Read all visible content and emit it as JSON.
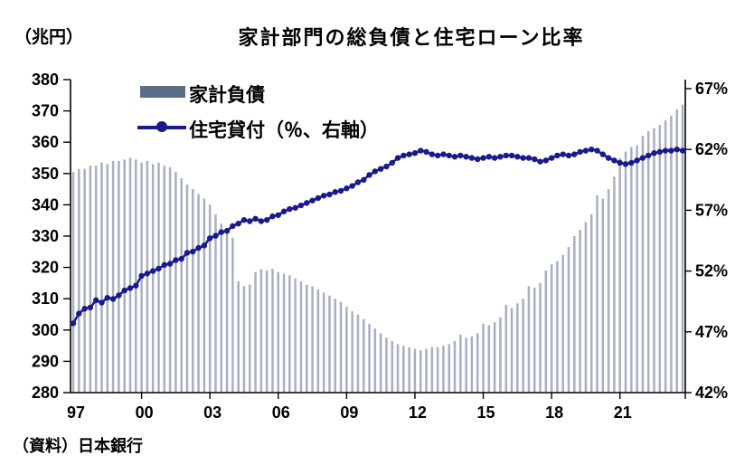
{
  "header": {
    "unit_label": "（兆円）",
    "title": "家計部門の総負債と住宅ローン比率"
  },
  "legend": {
    "bars_label": "家計負債",
    "line_label": "住宅貸付（％、右軸）"
  },
  "footer": {
    "source": "（資料）日本銀行"
  },
  "colors": {
    "bar": "#a7afc0",
    "bar_legend": "#5b6c85",
    "line": "#1a1a8c",
    "axis": "#000000",
    "text": "#000000",
    "background": "#ffffff"
  },
  "chart_data": {
    "type": "bar",
    "subtype": "combo bar + line, dual axis",
    "frequency": "quarterly",
    "title": "家計部門の総負債と住宅ローン比率",
    "grid": false,
    "legend_position": "inside top-left",
    "categories": [
      "1997Q1",
      "1997Q2",
      "1997Q3",
      "1997Q4",
      "1998Q1",
      "1998Q2",
      "1998Q3",
      "1998Q4",
      "1999Q1",
      "1999Q2",
      "1999Q3",
      "1999Q4",
      "2000Q1",
      "2000Q2",
      "2000Q3",
      "2000Q4",
      "2001Q1",
      "2001Q2",
      "2001Q3",
      "2001Q4",
      "2002Q1",
      "2002Q2",
      "2002Q3",
      "2002Q4",
      "2003Q1",
      "2003Q2",
      "2003Q3",
      "2003Q4",
      "2004Q1",
      "2004Q2",
      "2004Q3",
      "2004Q4",
      "2005Q1",
      "2005Q2",
      "2005Q3",
      "2005Q4",
      "2006Q1",
      "2006Q2",
      "2006Q3",
      "2006Q4",
      "2007Q1",
      "2007Q2",
      "2007Q3",
      "2007Q4",
      "2008Q1",
      "2008Q2",
      "2008Q3",
      "2008Q4",
      "2009Q1",
      "2009Q2",
      "2009Q3",
      "2009Q4",
      "2010Q1",
      "2010Q2",
      "2010Q3",
      "2010Q4",
      "2011Q1",
      "2011Q2",
      "2011Q3",
      "2011Q4",
      "2012Q1",
      "2012Q2",
      "2012Q3",
      "2012Q4",
      "2013Q1",
      "2013Q2",
      "2013Q3",
      "2013Q4",
      "2014Q1",
      "2014Q2",
      "2014Q3",
      "2014Q4",
      "2015Q1",
      "2015Q2",
      "2015Q3",
      "2015Q4",
      "2016Q1",
      "2016Q2",
      "2016Q3",
      "2016Q4",
      "2017Q1",
      "2017Q2",
      "2017Q3",
      "2017Q4",
      "2018Q1",
      "2018Q2",
      "2018Q3",
      "2018Q4",
      "2019Q1",
      "2019Q2",
      "2019Q3",
      "2019Q4",
      "2020Q1",
      "2020Q2",
      "2020Q3",
      "2020Q4",
      "2021Q1",
      "2021Q2",
      "2021Q3",
      "2021Q4",
      "2022Q1",
      "2022Q2",
      "2022Q3",
      "2022Q4",
      "2023Q1",
      "2023Q2",
      "2023Q3",
      "2023Q4"
    ],
    "series": [
      {
        "name": "家計負債",
        "type": "bar",
        "axis": "left",
        "unit": "兆円",
        "values": [
          350.5,
          351.5,
          351.5,
          352.5,
          352.5,
          353.5,
          353,
          354,
          354,
          354.5,
          355,
          354.5,
          353.5,
          354,
          353,
          353.5,
          352.5,
          352,
          350.5,
          348.5,
          346.5,
          345,
          343.5,
          342,
          340,
          337,
          334,
          331.5,
          329.5,
          315.5,
          314,
          314.5,
          318.5,
          319.5,
          319,
          319.5,
          318.5,
          318,
          317.5,
          316.5,
          315.5,
          314.5,
          314,
          313,
          312,
          311,
          310,
          309,
          307.5,
          306,
          305,
          303.5,
          302,
          300.5,
          299,
          297.5,
          296.5,
          295.5,
          295,
          294.5,
          294,
          293.5,
          294,
          294.5,
          294.5,
          295,
          295.5,
          296.5,
          298.5,
          297.5,
          298,
          299,
          302,
          301.5,
          302.5,
          304,
          308,
          307,
          308.5,
          310,
          314,
          313.5,
          315,
          319,
          321,
          322,
          324,
          326.5,
          330,
          332,
          334.5,
          337,
          343,
          342,
          345,
          349,
          355,
          357,
          358.5,
          359,
          362,
          363.5,
          364.5,
          365.5,
          367,
          368.5,
          370.5,
          372
        ]
      },
      {
        "name": "住宅貸付（％、右軸）",
        "type": "line",
        "axis": "right",
        "unit": "%",
        "values": [
          47.7,
          48.5,
          48.9,
          49,
          49.6,
          49.4,
          49.8,
          49.7,
          50,
          50.4,
          50.6,
          50.8,
          51.6,
          51.8,
          52,
          52.2,
          52.5,
          52.6,
          52.9,
          53,
          53.5,
          53.6,
          53.9,
          54.1,
          54.7,
          54.9,
          55.2,
          55.3,
          55.7,
          55.9,
          56.2,
          56.1,
          56.3,
          56.1,
          56.2,
          56.5,
          56.6,
          56.9,
          57.1,
          57.2,
          57.4,
          57.6,
          57.8,
          58,
          58.2,
          58.3,
          58.5,
          58.6,
          58.8,
          59,
          59.3,
          59.5,
          59.9,
          60.2,
          60.4,
          60.6,
          60.9,
          61.3,
          61.5,
          61.6,
          61.7,
          61.9,
          61.8,
          61.6,
          61.5,
          61.6,
          61.5,
          61.4,
          61.5,
          61.4,
          61.3,
          61.2,
          61.3,
          61.4,
          61.3,
          61.4,
          61.5,
          61.5,
          61.4,
          61.3,
          61.3,
          61.2,
          61,
          61.1,
          61.3,
          61.5,
          61.6,
          61.5,
          61.6,
          61.8,
          61.9,
          62,
          61.9,
          61.6,
          61.3,
          61.1,
          60.9,
          60.8,
          60.9,
          61.1,
          61.3,
          61.5,
          61.7,
          61.8,
          61.9,
          61.9,
          62,
          61.9
        ]
      }
    ],
    "left_axis": {
      "label": "（兆円）",
      "min": 280,
      "max": 380,
      "step": 10,
      "ticks": [
        280,
        290,
        300,
        310,
        320,
        330,
        340,
        350,
        360,
        370,
        380
      ]
    },
    "right_axis": {
      "suffix": "%",
      "min": 42,
      "step": 5,
      "ticks": [
        42,
        47,
        52,
        57,
        62,
        67
      ]
    },
    "x_axis": {
      "tick_labels": [
        "97",
        "00",
        "03",
        "06",
        "09",
        "12",
        "15",
        "18",
        "21"
      ],
      "tick_quarter_indices": [
        0,
        12,
        24,
        36,
        48,
        60,
        72,
        84,
        96
      ]
    }
  }
}
